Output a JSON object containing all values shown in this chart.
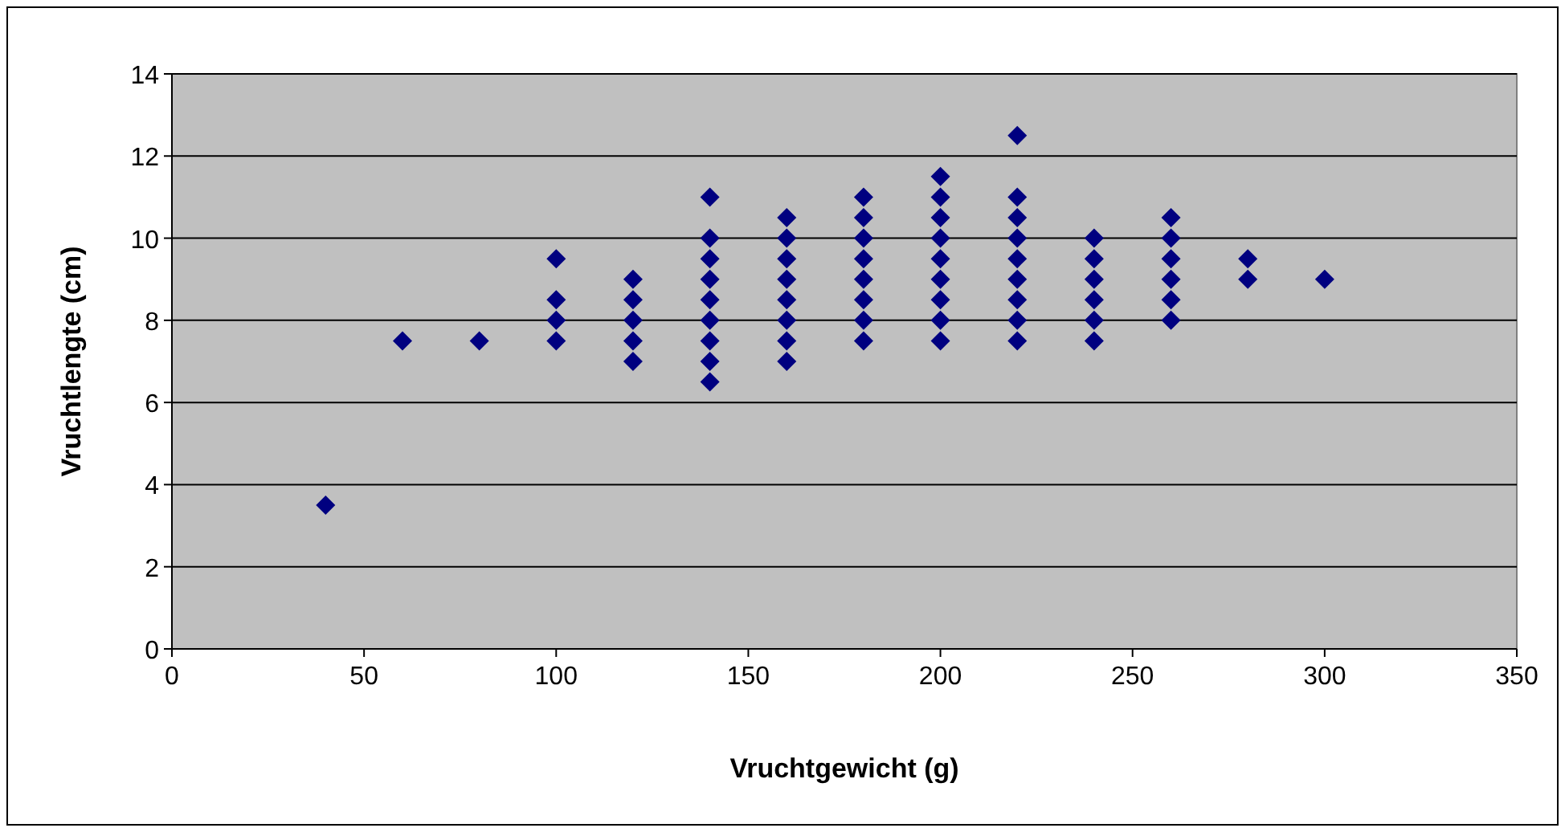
{
  "chart_data": {
    "type": "scatter",
    "xlabel": "Vruchtgewicht (g)",
    "ylabel": "Vruchtlengte (cm)",
    "xlim": [
      0,
      350
    ],
    "xticks": [
      0,
      50,
      100,
      150,
      200,
      250,
      300,
      350
    ],
    "ylim": [
      0,
      14
    ],
    "yticks": [
      0,
      2,
      4,
      6,
      8,
      10,
      12,
      14
    ],
    "grid": "y",
    "marker": "diamond",
    "series": [
      {
        "color": "#000080",
        "x": [
          40,
          60,
          80,
          100,
          100,
          100,
          100,
          120,
          120,
          120,
          120,
          120,
          140,
          140,
          140,
          140,
          140,
          140,
          140,
          140,
          140,
          160,
          160,
          160,
          160,
          160,
          160,
          160,
          160,
          180,
          180,
          180,
          180,
          180,
          180,
          180,
          180,
          200,
          200,
          200,
          200,
          200,
          200,
          200,
          200,
          200,
          220,
          220,
          220,
          220,
          220,
          220,
          220,
          220,
          220,
          240,
          240,
          240,
          240,
          240,
          240,
          260,
          260,
          260,
          260,
          260,
          260,
          280,
          280,
          300
        ],
        "values": [
          3.5,
          7.5,
          7.5,
          7.5,
          8,
          8.5,
          9.5,
          7,
          7.5,
          8,
          8.5,
          9,
          6.5,
          7,
          7.5,
          8,
          8.5,
          9,
          9.5,
          10,
          11,
          7,
          7.5,
          8,
          8.5,
          9,
          9.5,
          10,
          10.5,
          7.5,
          8,
          8.5,
          9,
          9.5,
          10,
          10.5,
          11,
          7.5,
          8,
          8.5,
          9,
          9.5,
          10,
          10.5,
          11,
          11.5,
          7.5,
          8,
          8.5,
          9,
          9.5,
          10,
          10.5,
          11,
          12.5,
          7.5,
          8,
          8.5,
          9,
          9.5,
          10,
          8,
          8.5,
          9,
          9.5,
          10,
          10.5,
          9,
          9.5,
          9
        ]
      }
    ]
  }
}
